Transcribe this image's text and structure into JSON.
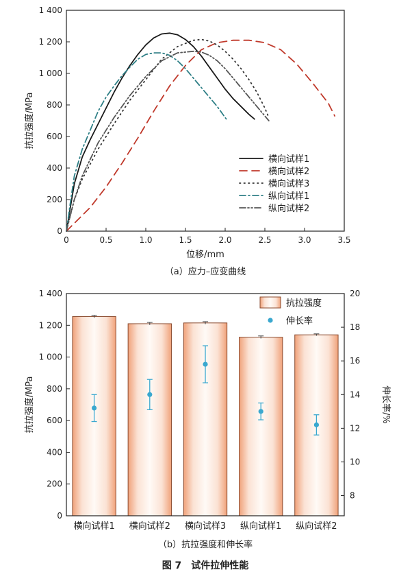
{
  "chart_data": [
    {
      "type": "line",
      "xlabel": "位移/mm",
      "ylabel": "抗拉强度/MPa",
      "xlim": [
        0,
        3.5
      ],
      "ylim": [
        0,
        1400
      ],
      "xticks": [
        "0",
        "0.5",
        "1.0",
        "1.5",
        "2.0",
        "2.5",
        "3.0",
        "3.5"
      ],
      "yticks": [
        "0",
        "200",
        "400",
        "600",
        "800",
        "1 000",
        "1 200",
        "1 400"
      ],
      "caption": "（a）应力–应变曲线",
      "legend_position": "right",
      "series": [
        {
          "name": "横向试样1",
          "color": "#1a1a1a",
          "dash": "solid",
          "x": [
            0,
            0.05,
            0.1,
            0.2,
            0.3,
            0.4,
            0.5,
            0.6,
            0.7,
            0.8,
            0.9,
            1.0,
            1.1,
            1.2,
            1.3,
            1.4,
            1.5,
            1.6,
            1.7,
            1.8,
            1.9,
            2.0,
            2.1,
            2.2,
            2.3,
            2.37
          ],
          "y": [
            0,
            150,
            300,
            470,
            580,
            680,
            780,
            880,
            970,
            1050,
            1120,
            1180,
            1225,
            1250,
            1255,
            1245,
            1215,
            1170,
            1110,
            1040,
            970,
            900,
            840,
            790,
            740,
            710
          ]
        },
        {
          "name": "横向试样2",
          "color": "#c0392b",
          "dash": "long",
          "x": [
            0,
            0.1,
            0.3,
            0.5,
            0.7,
            0.9,
            1.1,
            1.3,
            1.5,
            1.7,
            1.9,
            2.1,
            2.3,
            2.5,
            2.7,
            2.9,
            3.1,
            3.3,
            3.38
          ],
          "y": [
            0,
            50,
            150,
            280,
            430,
            590,
            760,
            920,
            1050,
            1150,
            1195,
            1210,
            1210,
            1195,
            1150,
            1060,
            940,
            810,
            730
          ]
        },
        {
          "name": "横向试样3",
          "color": "#333333",
          "dash": "dotted",
          "x": [
            0,
            0.1,
            0.2,
            0.4,
            0.6,
            0.8,
            1.0,
            1.2,
            1.4,
            1.6,
            1.7,
            1.8,
            1.9,
            2.0,
            2.1,
            2.2,
            2.3,
            2.4,
            2.5,
            2.55
          ],
          "y": [
            0,
            200,
            330,
            520,
            680,
            830,
            960,
            1090,
            1170,
            1210,
            1215,
            1205,
            1180,
            1140,
            1090,
            1030,
            960,
            880,
            780,
            720
          ]
        },
        {
          "name": "纵向试样1",
          "color": "#2e7f86",
          "dash": "dashdot",
          "x": [
            0,
            0.05,
            0.1,
            0.2,
            0.3,
            0.4,
            0.5,
            0.6,
            0.7,
            0.8,
            0.9,
            1.0,
            1.1,
            1.2,
            1.3,
            1.4,
            1.5,
            1.6,
            1.7,
            1.8,
            1.9,
            2.0,
            2.03
          ],
          "y": [
            0,
            180,
            350,
            520,
            640,
            760,
            850,
            920,
            985,
            1040,
            1090,
            1120,
            1130,
            1130,
            1115,
            1080,
            1030,
            970,
            910,
            850,
            790,
            720,
            700
          ]
        },
        {
          "name": "纵向试样2",
          "color": "#555555",
          "dash": "dashdotdot",
          "x": [
            0,
            0.1,
            0.2,
            0.4,
            0.6,
            0.8,
            1.0,
            1.2,
            1.4,
            1.6,
            1.7,
            1.8,
            1.9,
            2.0,
            2.1,
            2.2,
            2.3,
            2.4,
            2.5,
            2.55
          ],
          "y": [
            0,
            200,
            350,
            560,
            720,
            860,
            980,
            1080,
            1130,
            1140,
            1135,
            1115,
            1080,
            1030,
            970,
            910,
            850,
            790,
            730,
            700
          ]
        }
      ]
    },
    {
      "type": "bar",
      "categories": [
        "横向试样1",
        "横向试样2",
        "横向试样3",
        "纵向试样1",
        "纵向试样2"
      ],
      "ylabel": "抗拉强度/MPa",
      "y2label": "伸长率/%",
      "ylim": [
        0,
        1400
      ],
      "y2lim": [
        6.8,
        20
      ],
      "yticks": [
        "0",
        "200",
        "400",
        "600",
        "800",
        "1 000",
        "1 200",
        "1 400"
      ],
      "y2ticks": [
        "8",
        "10",
        "12",
        "14",
        "16",
        "18",
        "20"
      ],
      "caption": "（b）抗拉强度和伸长率",
      "legend_position": "top-right",
      "bar_series": {
        "name": "抗拉强度",
        "values": [
          1255,
          1210,
          1215,
          1125,
          1140
        ],
        "error": [
          8,
          8,
          8,
          8,
          6
        ],
        "fill": "#f0a27a",
        "fill_light": "#fbe2d4"
      },
      "point_series": {
        "name": "伸长率",
        "values": [
          13.2,
          14.0,
          15.8,
          13.0,
          12.2
        ],
        "error": [
          0.8,
          0.9,
          1.1,
          0.5,
          0.6
        ],
        "color": "#3aa8cf"
      }
    }
  ],
  "figure_title": "图 7　试件拉伸性能"
}
